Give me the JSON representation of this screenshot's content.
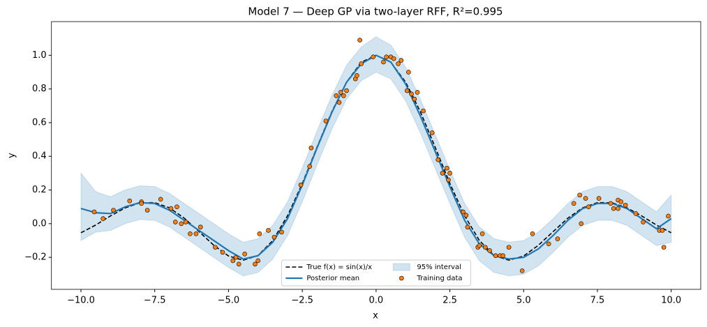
{
  "chart_data": {
    "type": "line",
    "title": "Model 7 — Deep GP via two-layer RFF, R²=0.995",
    "xlabel": "x",
    "ylabel": "y",
    "xlim": [
      -11,
      11
    ],
    "ylim": [
      -0.39,
      1.2
    ],
    "xticks": [
      {
        "value": -10,
        "label": "−10.0"
      },
      {
        "value": -7.5,
        "label": "−7.5"
      },
      {
        "value": -5,
        "label": "−5.0"
      },
      {
        "value": -2.5,
        "label": "−2.5"
      },
      {
        "value": 0,
        "label": "0.0"
      },
      {
        "value": 2.5,
        "label": "2.5"
      },
      {
        "value": 5,
        "label": "5.0"
      },
      {
        "value": 7.5,
        "label": "7.5"
      },
      {
        "value": 10,
        "label": "10.0"
      }
    ],
    "yticks": [
      {
        "value": -0.2,
        "label": "−0.2"
      },
      {
        "value": 0,
        "label": "0.0"
      },
      0.2,
      0.4,
      0.6,
      0.8,
      {
        "value": 1,
        "label": "1.0"
      }
    ],
    "legend": "lower center",
    "x": [
      -10,
      -9.5,
      -9,
      -8.5,
      -8,
      -7.5,
      -7,
      -6.5,
      -6,
      -5.5,
      -5,
      -4.5,
      -4,
      -3.5,
      -3,
      -2.5,
      -2,
      -1.5,
      -1,
      -0.5,
      0,
      0.5,
      1,
      1.5,
      2,
      2.5,
      3,
      3.5,
      4,
      4.5,
      5,
      5.5,
      6,
      6.5,
      7,
      7.5,
      8,
      8.5,
      9,
      9.5,
      10
    ],
    "band": {
      "name": "95% interval",
      "color": "#1f77b4",
      "upper": [
        0.3,
        0.19,
        0.16,
        0.2,
        0.225,
        0.22,
        0.18,
        0.12,
        0.06,
        0.0,
        -0.06,
        -0.11,
        -0.09,
        -0.01,
        0.13,
        0.33,
        0.55,
        0.76,
        0.94,
        1.05,
        1.11,
        1.06,
        0.93,
        0.74,
        0.53,
        0.32,
        0.12,
        -0.02,
        -0.09,
        -0.11,
        -0.1,
        -0.05,
        0.03,
        0.12,
        0.19,
        0.22,
        0.22,
        0.19,
        0.13,
        0.07,
        0.17
      ],
      "lower": [
        -0.1,
        -0.05,
        -0.04,
        0.0,
        0.025,
        0.02,
        -0.02,
        -0.08,
        -0.14,
        -0.2,
        -0.26,
        -0.31,
        -0.29,
        -0.21,
        -0.07,
        0.13,
        0.35,
        0.56,
        0.74,
        0.85,
        0.9,
        0.86,
        0.73,
        0.54,
        0.33,
        0.12,
        -0.08,
        -0.22,
        -0.29,
        -0.31,
        -0.3,
        -0.25,
        -0.17,
        -0.08,
        -0.01,
        0.02,
        0.02,
        -0.01,
        -0.07,
        -0.13,
        -0.11
      ]
    },
    "series": [
      {
        "name": "True f(x) = sin(x)/x",
        "color": "#000000",
        "dashed": true,
        "values": [
          -0.054,
          -0.008,
          0.046,
          0.094,
          0.124,
          0.125,
          0.094,
          0.033,
          -0.047,
          -0.128,
          -0.192,
          -0.217,
          -0.189,
          -0.1,
          0.047,
          0.239,
          0.455,
          0.665,
          0.841,
          0.959,
          1,
          0.959,
          0.841,
          0.665,
          0.455,
          0.239,
          0.047,
          -0.1,
          -0.189,
          -0.217,
          -0.192,
          -0.128,
          -0.047,
          0.033,
          0.094,
          0.125,
          0.124,
          0.094,
          0.046,
          -0.008,
          -0.054
        ]
      },
      {
        "name": "Posterior mean",
        "color": "#1f77b4",
        "dashed": false,
        "values": [
          0.09,
          0.065,
          0.06,
          0.1,
          0.125,
          0.12,
          0.08,
          0.02,
          -0.04,
          -0.1,
          -0.16,
          -0.21,
          -0.19,
          -0.11,
          0.03,
          0.23,
          0.45,
          0.66,
          0.84,
          0.95,
          1.0,
          0.96,
          0.83,
          0.64,
          0.43,
          0.22,
          0.02,
          -0.12,
          -0.19,
          -0.21,
          -0.2,
          -0.15,
          -0.07,
          0.02,
          0.09,
          0.12,
          0.12,
          0.09,
          0.03,
          -0.03,
          0.03
        ]
      }
    ],
    "scatter": {
      "name": "Training data",
      "color": "#ff7f0e",
      "x": [
        -9.55,
        -9.25,
        -8.9,
        -8.35,
        -7.95,
        -7.95,
        -7.75,
        -7.3,
        -6.95,
        -6.8,
        -6.75,
        -6.6,
        -6.45,
        -6.3,
        -6.1,
        -5.95,
        -5.45,
        -5.2,
        -4.85,
        -4.75,
        -4.65,
        -4.45,
        -4.1,
        -4.0,
        -3.95,
        -3.65,
        -3.45,
        -3.2,
        -2.55,
        -2.25,
        -2.2,
        -1.7,
        -1.35,
        -1.25,
        -1.2,
        -1.1,
        -1.0,
        -0.7,
        -0.65,
        -0.55,
        -0.5,
        -0.1,
        0.25,
        0.35,
        0.5,
        0.6,
        0.75,
        0.85,
        1.05,
        1.1,
        1.2,
        1.3,
        1.4,
        1.6,
        1.9,
        2.1,
        2.25,
        2.4,
        2.45,
        2.5,
        2.95,
        3.05,
        3.1,
        3.45,
        3.5,
        3.6,
        3.7,
        3.85,
        4.05,
        4.2,
        4.3,
        4.5,
        4.95,
        5.3,
        5.85,
        6.15,
        6.7,
        6.9,
        6.95,
        7.1,
        7.2,
        7.55,
        7.95,
        8.05,
        8.2,
        8.2,
        8.3,
        8.45,
        8.8,
        9.05,
        9.6,
        9.7,
        9.75,
        9.9
      ],
      "y": [
        0.07,
        0.03,
        0.08,
        0.135,
        0.13,
        0.12,
        0.08,
        0.145,
        0.09,
        0.01,
        0.1,
        0.0,
        0.01,
        -0.06,
        -0.06,
        -0.02,
        -0.14,
        -0.17,
        -0.22,
        -0.2,
        -0.24,
        -0.18,
        -0.24,
        -0.22,
        -0.06,
        -0.04,
        -0.08,
        -0.05,
        0.23,
        0.34,
        0.45,
        0.61,
        0.76,
        0.72,
        0.78,
        0.76,
        0.79,
        0.86,
        0.88,
        1.09,
        0.95,
        0.99,
        0.96,
        0.99,
        0.99,
        0.98,
        0.95,
        0.97,
        0.79,
        0.9,
        0.77,
        0.74,
        0.78,
        0.67,
        0.54,
        0.38,
        0.3,
        0.33,
        0.26,
        0.3,
        0.07,
        0.05,
        -0.02,
        -0.14,
        -0.13,
        -0.06,
        -0.14,
        -0.16,
        -0.19,
        -0.19,
        -0.19,
        -0.14,
        -0.28,
        -0.06,
        -0.12,
        -0.09,
        0.12,
        0.17,
        0.0,
        0.15,
        0.1,
        0.15,
        0.12,
        0.09,
        0.14,
        0.09,
        0.13,
        0.11,
        0.06,
        0.01,
        -0.04,
        -0.04,
        -0.14,
        0.045
      ]
    }
  }
}
